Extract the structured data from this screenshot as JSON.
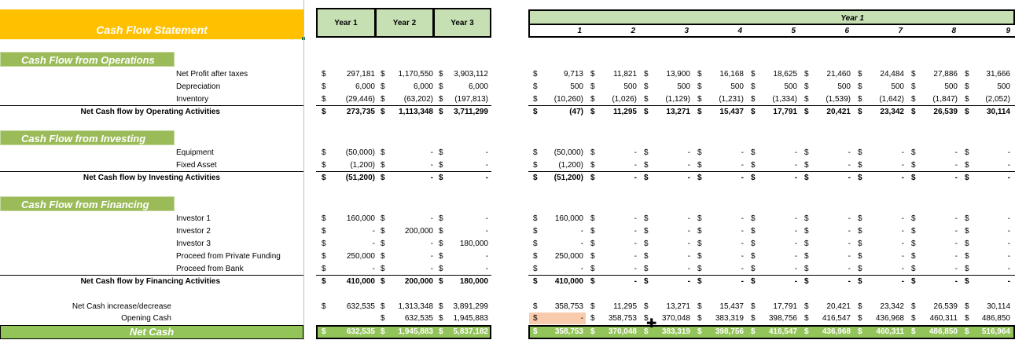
{
  "title": "Cash Flow Statement",
  "sections": {
    "operations": "Cash Flow from Operations",
    "investing": "Cash Flow from Investing",
    "financing": "Cash Flow from Financing"
  },
  "year_headers": [
    "Year 1",
    "Year 2",
    "Year 3"
  ],
  "monthly_header": "Year 1",
  "months": [
    "1",
    "2",
    "3",
    "4",
    "5",
    "6",
    "7",
    "8",
    "9"
  ],
  "net_cash_label": "Net Cash",
  "rows": [
    {
      "label": "Net Profit after taxes",
      "type": "item",
      "years": [
        "297,181",
        "1,170,550",
        "3,903,112"
      ],
      "months": [
        "9,713",
        "11,821",
        "13,900",
        "16,168",
        "18,625",
        "21,460",
        "24,484",
        "27,886",
        "31,666"
      ]
    },
    {
      "label": "Depreciation",
      "type": "item",
      "years": [
        "6,000",
        "6,000",
        "6,000"
      ],
      "months": [
        "500",
        "500",
        "500",
        "500",
        "500",
        "500",
        "500",
        "500",
        "500"
      ]
    },
    {
      "label": "Inventory",
      "type": "item",
      "years": [
        "(29,446)",
        "(63,202)",
        "(197,813)"
      ],
      "months": [
        "(10,260)",
        "(1,026)",
        "(1,129)",
        "(1,231)",
        "(1,334)",
        "(1,539)",
        "(1,642)",
        "(1,847)",
        "(2,052)"
      ]
    },
    {
      "label": "Net Cash flow by Operating Activities",
      "type": "total",
      "years": [
        "273,735",
        "1,113,348",
        "3,711,299"
      ],
      "months": [
        "(47)",
        "11,295",
        "13,271",
        "15,437",
        "17,791",
        "20,421",
        "23,342",
        "26,539",
        "30,114"
      ]
    },
    {
      "label": "Equipment",
      "type": "item",
      "years": [
        "(50,000)",
        "-",
        "-"
      ],
      "months": [
        "(50,000)",
        "-",
        "-",
        "-",
        "-",
        "-",
        "-",
        "-",
        "-"
      ]
    },
    {
      "label": "Fixed Asset",
      "type": "item",
      "years": [
        "(1,200)",
        "-",
        "-"
      ],
      "months": [
        "(1,200)",
        "-",
        "-",
        "-",
        "-",
        "-",
        "-",
        "-",
        "-"
      ]
    },
    {
      "label": "Net Cash flow by Investing Activities",
      "type": "total",
      "years": [
        "(51,200)",
        "-",
        "-"
      ],
      "months": [
        "(51,200)",
        "-",
        "-",
        "-",
        "-",
        "-",
        "-",
        "-",
        "-"
      ]
    },
    {
      "label": "Investor 1",
      "type": "item",
      "years": [
        "160,000",
        "-",
        "-"
      ],
      "months": [
        "160,000",
        "-",
        "-",
        "-",
        "-",
        "-",
        "-",
        "-",
        "-"
      ]
    },
    {
      "label": "Investor 2",
      "type": "item",
      "years": [
        "-",
        "200,000",
        "-"
      ],
      "months": [
        "-",
        "-",
        "-",
        "-",
        "-",
        "-",
        "-",
        "-",
        "-"
      ]
    },
    {
      "label": "Investor 3",
      "type": "item",
      "years": [
        "-",
        "-",
        "180,000"
      ],
      "months": [
        "-",
        "-",
        "-",
        "-",
        "-",
        "-",
        "-",
        "-",
        "-"
      ]
    },
    {
      "label": "Proceed from Private Funding",
      "type": "item",
      "years": [
        "250,000",
        "-",
        "-"
      ],
      "months": [
        "250,000",
        "-",
        "-",
        "-",
        "-",
        "-",
        "-",
        "-",
        "-"
      ]
    },
    {
      "label": "Proceed from Bank",
      "type": "item",
      "years": [
        "-",
        "-",
        "-"
      ],
      "months": [
        "-",
        "-",
        "-",
        "-",
        "-",
        "-",
        "-",
        "-",
        "-"
      ]
    },
    {
      "label": "Net Cash flow by Financing Activities",
      "type": "total",
      "years": [
        "410,000",
        "200,000",
        "180,000"
      ],
      "months": [
        "410,000",
        "-",
        "-",
        "-",
        "-",
        "-",
        "-",
        "-",
        "-"
      ]
    },
    {
      "label": "Net Cash increase/decrease",
      "type": "item",
      "years": [
        "632,535",
        "1,313,348",
        "3,891,299"
      ],
      "months": [
        "358,753",
        "11,295",
        "13,271",
        "15,437",
        "17,791",
        "20,421",
        "23,342",
        "26,539",
        "30,114"
      ]
    },
    {
      "label": "Opening Cash",
      "type": "item",
      "years": [
        "",
        "632,535",
        "1,945,883"
      ],
      "months": [
        "-",
        "358,753",
        "370,048",
        "383,319",
        "398,756",
        "416,547",
        "436,968",
        "460,311",
        "486,850"
      ]
    },
    {
      "label": "Net Cash",
      "type": "net",
      "years": [
        "632,535",
        "1,945,883",
        "5,837,182"
      ],
      "months": [
        "358,753",
        "370,048",
        "383,319",
        "398,756",
        "416,547",
        "436,968",
        "460,311",
        "486,850",
        "516,964"
      ]
    }
  ],
  "currency_symbol": "$",
  "colors": {
    "title_bg": "#ffc000",
    "section_bg": "#9bbb59",
    "header_bg": "#c6e0b4",
    "net_cash_bg": "#92c45a",
    "highlight": "#f8cbad"
  }
}
